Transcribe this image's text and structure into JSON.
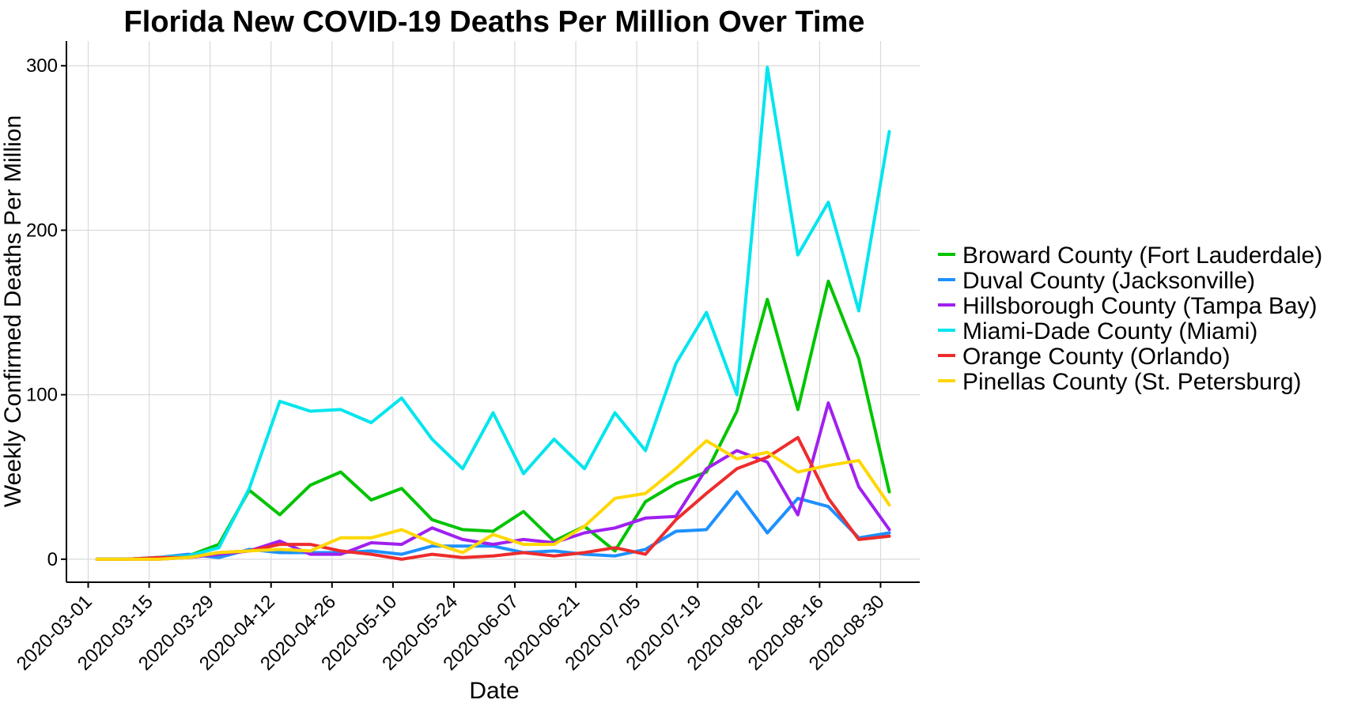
{
  "chart_data": {
    "type": "line",
    "title": "Florida New COVID-19 Deaths Per Million Over Time",
    "xlabel": "Date",
    "ylabel": "Weekly Confirmed Deaths Per Million",
    "ylim": [
      -14,
      315
    ],
    "yticks": [
      0,
      100,
      200,
      300
    ],
    "xlim": [
      "2020-02-25",
      "2020-09-08"
    ],
    "xticks": [
      "2020-03-01",
      "2020-03-15",
      "2020-03-29",
      "2020-04-12",
      "2020-04-26",
      "2020-05-10",
      "2020-05-24",
      "2020-06-07",
      "2020-06-21",
      "2020-07-05",
      "2020-07-19",
      "2020-08-02",
      "2020-08-16",
      "2020-08-30"
    ],
    "grid": true,
    "legend_position": "right",
    "x": [
      "2020-03-03",
      "2020-03-10",
      "2020-03-17",
      "2020-03-24",
      "2020-03-31",
      "2020-04-07",
      "2020-04-14",
      "2020-04-21",
      "2020-04-28",
      "2020-05-05",
      "2020-05-12",
      "2020-05-19",
      "2020-05-26",
      "2020-06-02",
      "2020-06-09",
      "2020-06-16",
      "2020-06-23",
      "2020-06-30",
      "2020-07-07",
      "2020-07-14",
      "2020-07-21",
      "2020-07-28",
      "2020-08-04",
      "2020-08-11",
      "2020-08-18",
      "2020-08-25",
      "2020-09-01"
    ],
    "series": [
      {
        "name": "Broward County (Fort Lauderdale)",
        "color": "#00c400",
        "values": [
          0,
          0,
          1,
          2,
          9,
          42,
          27,
          45,
          53,
          36,
          43,
          24,
          18,
          17,
          29,
          11,
          20,
          5,
          35,
          46,
          53,
          90,
          158,
          91,
          169,
          122,
          41
        ]
      },
      {
        "name": "Duval County (Jacksonville)",
        "color": "#1e90ff",
        "values": [
          0,
          0,
          1,
          3,
          1,
          6,
          4,
          4,
          4,
          5,
          3,
          8,
          8,
          8,
          4,
          5,
          3,
          2,
          6,
          17,
          18,
          41,
          16,
          37,
          32,
          13,
          16
        ]
      },
      {
        "name": "Hillsborough County (Tampa Bay)",
        "color": "#a020f0",
        "values": [
          0,
          0,
          0,
          1,
          3,
          5,
          11,
          3,
          3,
          10,
          9,
          19,
          12,
          9,
          12,
          10,
          16,
          19,
          25,
          26,
          55,
          66,
          59,
          27,
          95,
          44,
          18
        ]
      },
      {
        "name": "Miami-Dade County (Miami)",
        "color": "#00e5ee",
        "values": [
          0,
          0,
          1,
          2,
          7,
          43,
          96,
          90,
          91,
          83,
          98,
          73,
          55,
          89,
          52,
          73,
          55,
          89,
          66,
          119,
          150,
          100,
          299,
          185,
          217,
          151,
          260
        ]
      },
      {
        "name": "Orange County (Orlando)",
        "color": "#ee2c2c",
        "values": [
          0,
          0,
          1,
          1,
          4,
          5,
          9,
          9,
          5,
          3,
          0,
          3,
          1,
          2,
          4,
          2,
          4,
          7,
          3,
          24,
          40,
          55,
          62,
          74,
          37,
          12,
          14
        ]
      },
      {
        "name": "Pinellas County (St. Petersburg)",
        "color": "#ffd700",
        "values": [
          0,
          0,
          0,
          1,
          4,
          5,
          6,
          5,
          13,
          13,
          18,
          10,
          4,
          15,
          9,
          9,
          20,
          37,
          40,
          55,
          72,
          61,
          65,
          53,
          57,
          60,
          33
        ]
      }
    ]
  }
}
